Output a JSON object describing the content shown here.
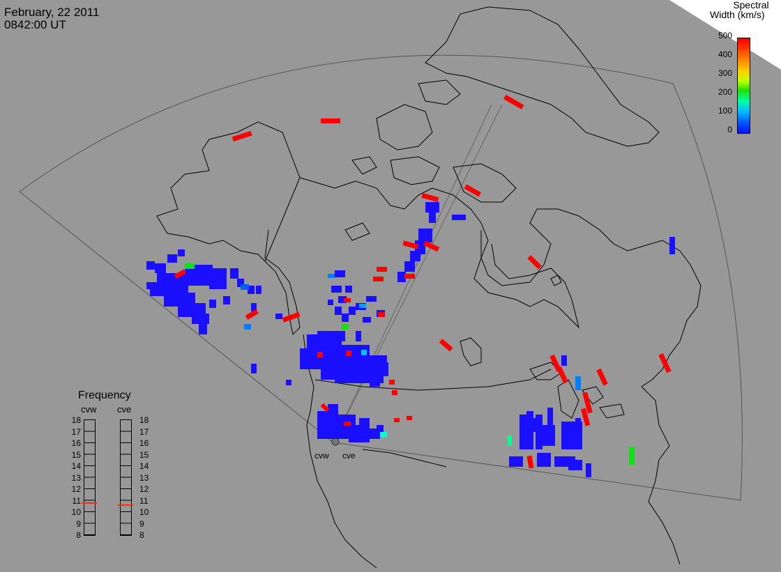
{
  "header": {
    "date": "February, 22 2011",
    "time": "0842:00 UT"
  },
  "colorbar": {
    "title_line1": "Spectral",
    "title_line2": "Width (km/s)",
    "ticks": [
      "500",
      "400",
      "300",
      "200",
      "100",
      "0"
    ],
    "colors": [
      "#0010ff",
      "#00c0ff",
      "#00ffa0",
      "#20e000",
      "#ffd000",
      "#ff8000",
      "#ff0000"
    ]
  },
  "frequency_panel": {
    "title": "Frequency",
    "channels": [
      {
        "name": "cvw",
        "frequency_mhz": 10.8
      },
      {
        "name": "cve",
        "frequency_mhz": 10.6
      }
    ],
    "scale": [
      "18",
      "17",
      "16",
      "15",
      "14",
      "13",
      "12",
      "11",
      "10",
      "9",
      "8"
    ],
    "marker_color": "#ff3000"
  },
  "stations": {
    "cvw": "cvw",
    "cve": "cve"
  },
  "map": {
    "background": "#989898",
    "fov_color": "#555555",
    "coast_color": "#000000"
  }
}
